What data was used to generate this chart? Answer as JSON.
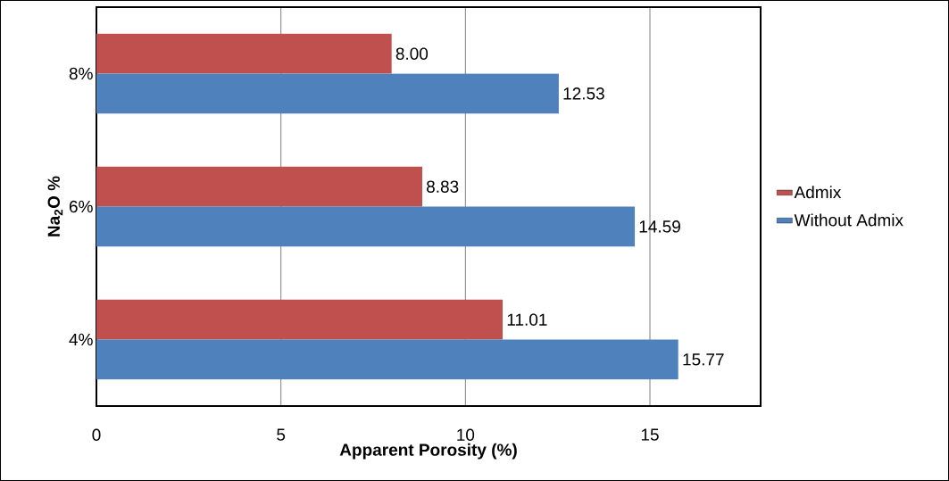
{
  "chart_data": {
    "type": "bar",
    "orientation": "horizontal",
    "xlabel": "Apparent Porosity (%)",
    "ylabel": "Na$_{2}$O %",
    "categories": [
      "8%",
      "6%",
      "4%"
    ],
    "series": [
      {
        "name": "Admix",
        "color": "#c0504d",
        "values": [
          8.0,
          8.83,
          11.01
        ],
        "value_labels": [
          "8.00",
          "8.83",
          "11.01"
        ]
      },
      {
        "name": "Without Admix",
        "color": "#4f81bd",
        "values": [
          12.53,
          14.59,
          15.77
        ],
        "value_labels": [
          "12.53",
          "14.59",
          "15.77"
        ]
      }
    ],
    "xlim": [
      0,
      18
    ],
    "xticks": [
      0,
      5,
      10,
      15
    ],
    "grid": "x",
    "legend": "right"
  }
}
